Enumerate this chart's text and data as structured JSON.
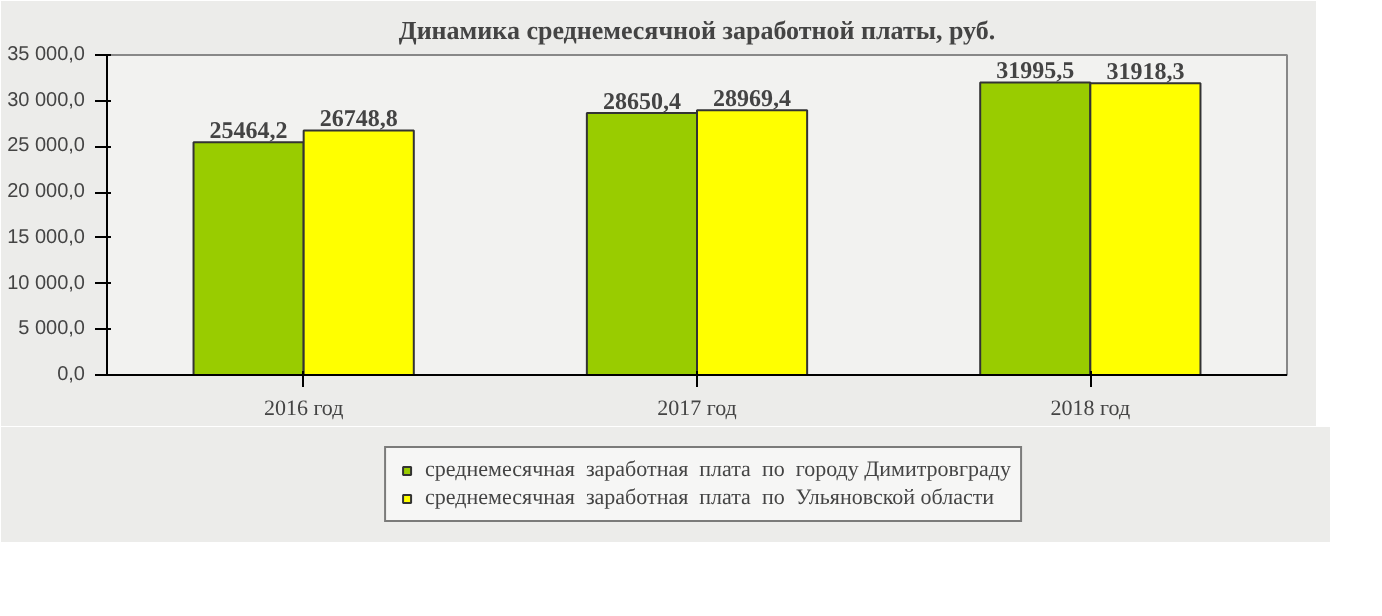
{
  "chart_data": {
    "type": "bar",
    "title": "Динамика среднемесячной заработной платы, руб.",
    "categories": [
      "2016 год",
      "2017 год",
      "2018 год"
    ],
    "series": [
      {
        "name": "среднемесячная  заработная  плата  по  городу Димитровграду",
        "color": "#99cc00",
        "values": [
          25464.2,
          28650.4,
          31995.5
        ]
      },
      {
        "name": "среднемесячная  заработная  плата  по  Ульяновской области",
        "color": "#ffff00",
        "values": [
          26748.8,
          28969.4,
          31918.3
        ]
      }
    ],
    "ylim": [
      0,
      35000
    ],
    "yticks": [
      {
        "value": 0,
        "label": "0,0"
      },
      {
        "value": 5000,
        "label": "5 000,0"
      },
      {
        "value": 10000,
        "label": "10 000,0"
      },
      {
        "value": 15000,
        "label": "15 000,0"
      },
      {
        "value": 20000,
        "label": "20 000,0"
      },
      {
        "value": 25000,
        "label": "25 000,0"
      },
      {
        "value": 30000,
        "label": "30 000,0"
      },
      {
        "value": 35000,
        "label": "35 000,0"
      }
    ],
    "value_labels": [
      [
        "25464,2",
        "28650,4",
        "31995,5"
      ],
      [
        "26748,8",
        "28969,4",
        "31918,3"
      ]
    ],
    "legend": "bottom"
  }
}
